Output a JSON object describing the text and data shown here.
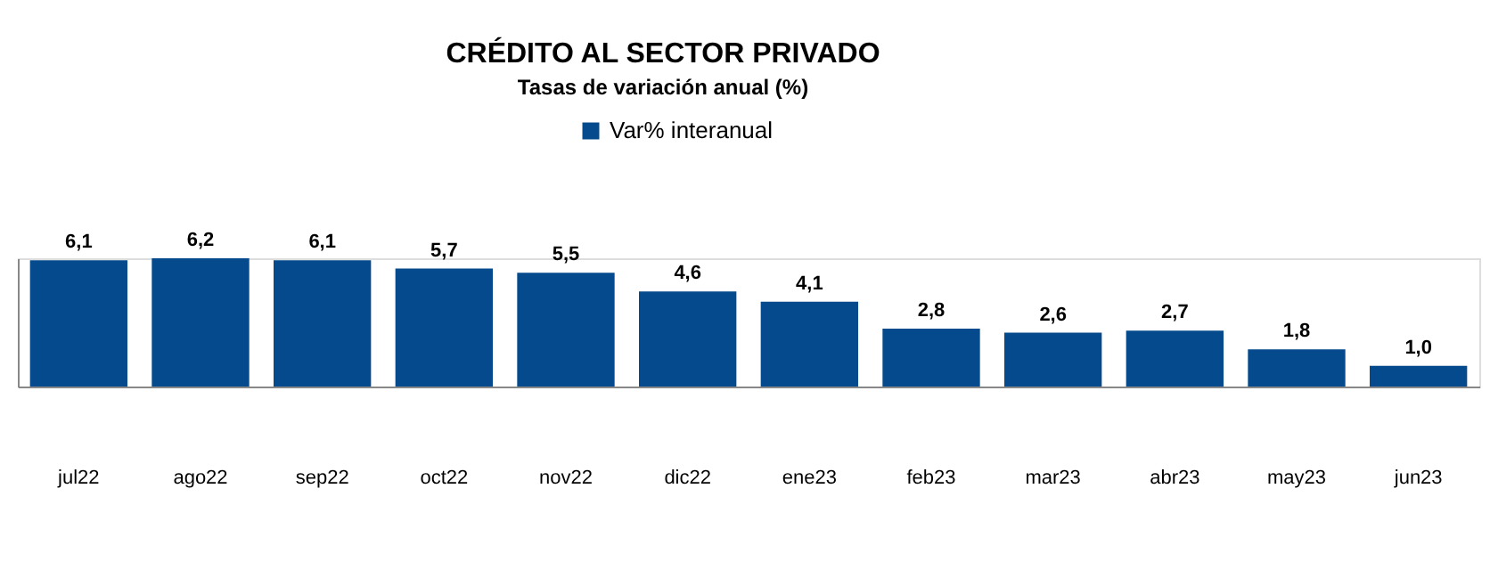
{
  "chart_data": {
    "type": "bar",
    "title": "CRÉDITO AL SECTOR PRIVADO",
    "subtitle": "Tasas de variación anual (%)",
    "categories": [
      "jul22",
      "ago22",
      "sep22",
      "oct22",
      "nov22",
      "dic22",
      "ene23",
      "feb23",
      "mar23",
      "abr23",
      "may23",
      "jun23"
    ],
    "series": [
      {
        "name": "Var% interanual",
        "color": "#054a8c",
        "values": [
          6.1,
          6.2,
          6.1,
          5.7,
          5.5,
          4.6,
          4.1,
          2.8,
          2.6,
          2.7,
          1.8,
          1.0
        ],
        "value_labels": [
          "6,1",
          "6,2",
          "6,1",
          "5,7",
          "5,5",
          "4,6",
          "4,1",
          "2,8",
          "2,6",
          "2,7",
          "1,8",
          "1,0"
        ]
      }
    ],
    "legend": "top",
    "grid": false
  }
}
